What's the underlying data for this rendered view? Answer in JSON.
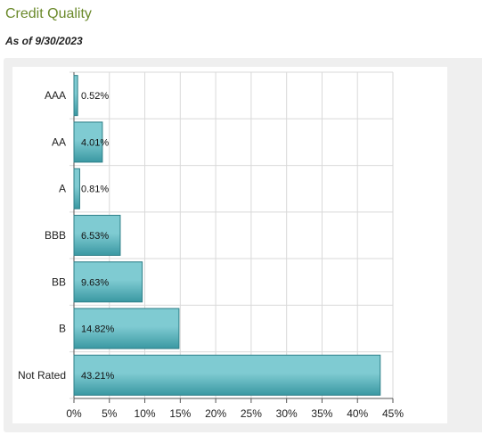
{
  "header": {
    "title": "Credit Quality",
    "as_of": "As of 9/30/2023"
  },
  "colors": {
    "title": "#6b8a2b",
    "bar_fill_light": "#7fcbd2",
    "bar_fill_dark": "#3a98a2",
    "bar_stroke": "#2e7f88",
    "grid": "#d9d9d9"
  },
  "chart_data": {
    "type": "bar",
    "orientation": "horizontal",
    "categories": [
      "AAA",
      "AA",
      "A",
      "BBB",
      "BB",
      "B",
      "Not Rated"
    ],
    "values": [
      0.52,
      4.01,
      0.81,
      6.53,
      9.63,
      14.82,
      43.21
    ],
    "value_labels": [
      "0.52%",
      "4.01%",
      "0.81%",
      "6.53%",
      "9.63%",
      "14.82%",
      "43.21%"
    ],
    "xlim": [
      0,
      45
    ],
    "x_ticks": [
      "0%",
      "5%",
      "10%",
      "15%",
      "20%",
      "25%",
      "30%",
      "35%",
      "40%",
      "45%"
    ],
    "grid": true
  }
}
